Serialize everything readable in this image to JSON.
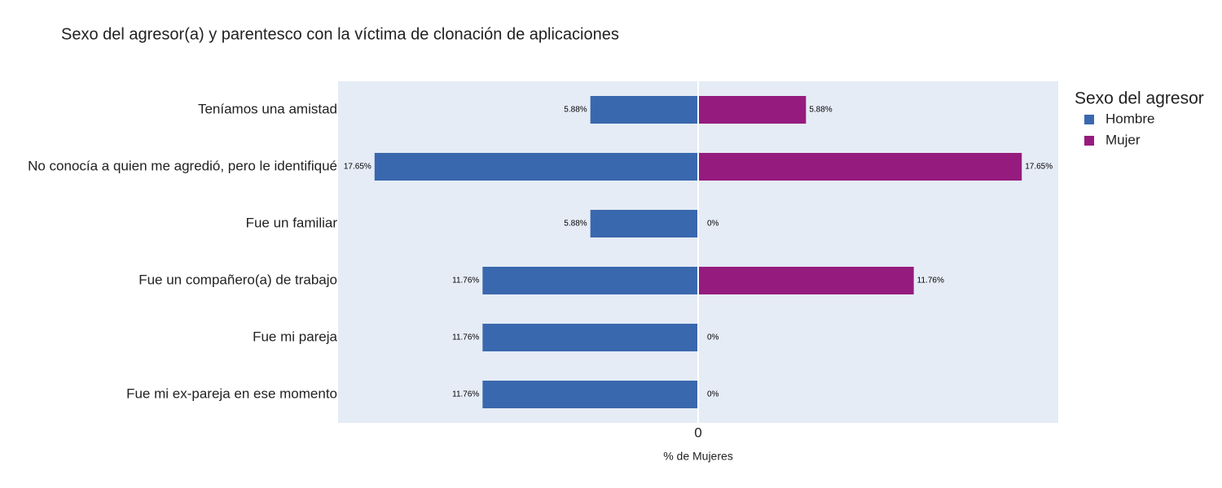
{
  "chart_data": {
    "type": "bar",
    "orientation": "horizontal",
    "barmode": "relative",
    "title": "Sexo del agresor(a) y parentesco con la víctima de clonación de aplicaciones",
    "x_label": "% de Mujeres",
    "legend_title": "Sexo del agresor",
    "legend": "right",
    "categories": [
      "Teníamos una amistad",
      "No conocía a quien me agredió, pero le identifiqué",
      "Fue un familiar",
      "Fue un compañero(a) de trabajo",
      "Fue mi pareja",
      "Fue mi ex-pareja en ese momento"
    ],
    "series": [
      {
        "name": "Hombre",
        "color": "#3a68ae",
        "values": [
          -5.88,
          -17.65,
          -5.88,
          -11.76,
          -11.76,
          -11.76
        ],
        "value_labels": [
          "5.88%",
          "17.65%",
          "5.88%",
          "11.76%",
          "11.76%",
          "11.76%"
        ]
      },
      {
        "name": "Mujer",
        "color": "#961b7e",
        "values": [
          5.88,
          17.65,
          0,
          11.76,
          0,
          0
        ],
        "value_labels": [
          "5.88%",
          "17.65%",
          "0%",
          "11.76%",
          "0%",
          "0%"
        ]
      }
    ],
    "xlim": [
      -19.64,
      19.64
    ],
    "xticks": [
      0
    ],
    "plot_background": "#e5ecf6"
  }
}
